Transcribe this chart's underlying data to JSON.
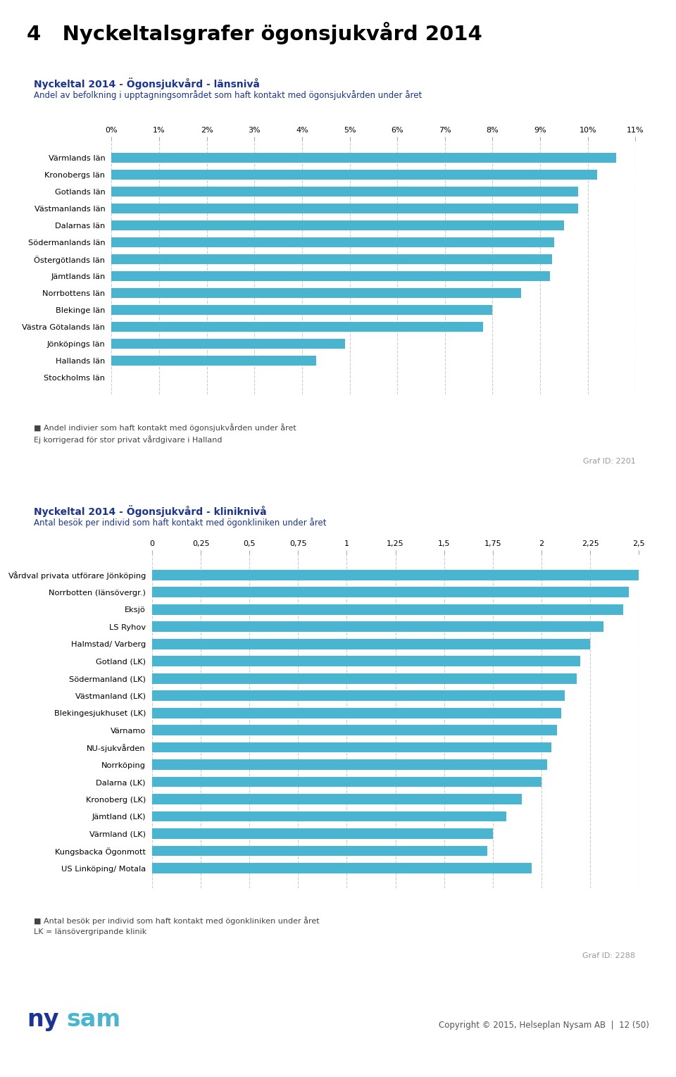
{
  "page_title": "4   Nyckeltalsgrafer ögonsjukvård 2014",
  "chart1": {
    "title": "Nyckeltal 2014 - Ögonsjukvård - länsnivå",
    "subtitle": "Andel av befolkning i upptagningsområdet som haft kontakt med ögonsjukvården under året",
    "categories": [
      "Värmlands län",
      "Kronobergs län",
      "Gotlands län",
      "Västmanlands län",
      "Dalarnas län",
      "Södermanlands län",
      "Östergötlands län",
      "Jämtlands län",
      "Norrbottens län",
      "Blekinge län",
      "Västra Götalands län",
      "Jönköpings län",
      "Hallands län",
      "Stockholms län"
    ],
    "values": [
      10.6,
      10.2,
      9.8,
      9.8,
      9.5,
      9.3,
      9.25,
      9.2,
      8.6,
      8.0,
      7.8,
      4.9,
      4.3,
      0.0
    ],
    "xlim": [
      0,
      11
    ],
    "xticks": [
      0,
      1,
      2,
      3,
      4,
      5,
      6,
      7,
      8,
      9,
      10,
      11
    ],
    "xticklabels": [
      "0%",
      "1%",
      "2%",
      "3%",
      "4%",
      "5%",
      "6%",
      "7%",
      "8%",
      "9%",
      "10%",
      "11%"
    ],
    "bar_color": "#4ab5d0",
    "legend_label": "Andel indivier som haft kontakt med ögonsjukvården under året",
    "note": "Ej korrigerad för stor privat vårdgivare i Halland",
    "graf_id": "Graf ID: 2201"
  },
  "chart2": {
    "title": "Nyckeltal 2014 - Ögonsjukvård - kliniknivå",
    "subtitle": "Antal besök per individ som haft kontakt med ögonkliniken under året",
    "categories": [
      "Vårdval privata utförare Jönköping",
      "Norrbotten (länsövergr.)",
      "Eksjö",
      "LS Ryhov",
      "Halmstad/ Varberg",
      "Gotland (LK)",
      "Södermanland (LK)",
      "Västmanland (LK)",
      "Blekingesjukhuset (LK)",
      "Värnamo",
      "NU-sjukvården",
      "Norrköping",
      "Dalarna (LK)",
      "Kronoberg (LK)",
      "Jämtland (LK)",
      "Värmland (LK)",
      "Kungsbacka Ögonmott",
      "US Linköping/ Motala"
    ],
    "values": [
      2.55,
      2.45,
      2.42,
      2.32,
      2.25,
      2.2,
      2.18,
      2.12,
      2.1,
      2.08,
      2.05,
      2.03,
      2.0,
      1.9,
      1.82,
      1.75,
      1.72,
      1.95
    ],
    "xlim": [
      0,
      2.5
    ],
    "xticks": [
      0,
      0.25,
      0.5,
      0.75,
      1.0,
      1.25,
      1.5,
      1.75,
      2.0,
      2.25,
      2.5
    ],
    "xticklabels": [
      "0",
      "0,25",
      "0,5",
      "0,75",
      "1",
      "1,25",
      "1,5",
      "1,75",
      "2",
      "2,25",
      "2,5"
    ],
    "bar_color": "#4ab5d0",
    "legend_label": "Antal besök per individ som haft kontakt med ögonkliniken under året",
    "note": "LK = länsövergripande klinik",
    "graf_id": "Graf ID: 2288"
  },
  "bg_color": "#ebebeb",
  "title_color": "#000000",
  "chart_title_color": "#1a3399",
  "bar_color": "#4ab5d0",
  "footer_text": "Copyright © 2015, Helseplan Nysam AB  |  12 (50)",
  "ny_color": "#1a3399",
  "sam_color": "#4ab5d0"
}
